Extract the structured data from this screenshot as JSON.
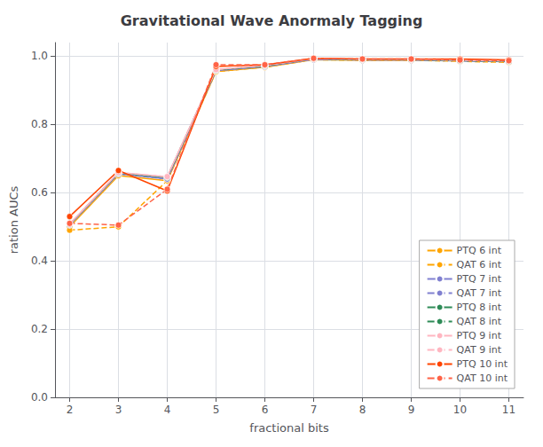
{
  "chart_data": {
    "type": "line",
    "title": "Gravitational Wave Anormaly Tagging",
    "xlabel": "fractional bits",
    "ylabel": "ration AUCs",
    "x": [
      2,
      3,
      4,
      5,
      6,
      7,
      8,
      9,
      10,
      11
    ],
    "series": [
      {
        "name": "PTQ 6 int",
        "color": "#FFA500",
        "line_style": "solid",
        "values": [
          0.5,
          0.65,
          0.635,
          0.955,
          0.968,
          0.99,
          0.988,
          0.988,
          0.988,
          0.985
        ]
      },
      {
        "name": "QAT 6 int",
        "color": "#FFA500",
        "line_style": "dashed",
        "values": [
          0.49,
          0.5,
          0.635,
          0.955,
          0.968,
          0.99,
          0.988,
          0.988,
          0.985,
          0.982
        ]
      },
      {
        "name": "PTQ 7 int",
        "color": "#8080D0",
        "line_style": "solid",
        "values": [
          0.505,
          0.655,
          0.64,
          0.958,
          0.97,
          0.991,
          0.989,
          0.989,
          0.989,
          0.986
        ]
      },
      {
        "name": "QAT 7 int",
        "color": "#8080D0",
        "line_style": "dashed",
        "values": [
          0.505,
          0.655,
          0.64,
          0.958,
          0.97,
          0.991,
          0.989,
          0.989,
          0.986,
          0.984
        ]
      },
      {
        "name": "PTQ 8 int",
        "color": "#2E8B57",
        "line_style": "solid",
        "values": [
          0.507,
          0.658,
          0.645,
          0.96,
          0.972,
          0.993,
          0.99,
          0.99,
          0.99,
          0.987
        ]
      },
      {
        "name": "QAT 8 int",
        "color": "#2E8B57",
        "line_style": "dashed",
        "values": [
          0.507,
          0.658,
          0.645,
          0.96,
          0.972,
          0.993,
          0.99,
          0.99,
          0.987,
          0.985
        ]
      },
      {
        "name": "PTQ 9 int",
        "color": "#FFB6C1",
        "line_style": "solid",
        "values": [
          0.508,
          0.659,
          0.647,
          0.961,
          0.973,
          0.993,
          0.991,
          0.991,
          0.991,
          0.988
        ]
      },
      {
        "name": "QAT 9 int",
        "color": "#FFB6C1",
        "line_style": "dashed",
        "values": [
          0.508,
          0.659,
          0.647,
          0.961,
          0.973,
          0.993,
          0.991,
          0.991,
          0.988,
          0.986
        ]
      },
      {
        "name": "PTQ 10 int",
        "color": "#FF4500",
        "line_style": "solid",
        "values": [
          0.53,
          0.665,
          0.605,
          0.97,
          0.975,
          0.994,
          0.992,
          0.992,
          0.992,
          0.989
        ]
      },
      {
        "name": "QAT 10 int",
        "color": "#FF6347",
        "line_style": "dashed",
        "values": [
          0.51,
          0.505,
          0.61,
          0.975,
          0.975,
          0.994,
          0.992,
          0.992,
          0.989,
          0.987
        ]
      }
    ],
    "xlim": [
      1.7,
      11.3
    ],
    "xticks": [
      2,
      3,
      4,
      5,
      6,
      7,
      8,
      9,
      10,
      11
    ],
    "ylim": [
      0.0,
      1.04
    ],
    "yticks": [
      {
        "value": 0,
        "label": "0.0"
      },
      0.2,
      0.4,
      0.6,
      0.8,
      {
        "value": 1,
        "label": "1.0"
      }
    ],
    "grid": true,
    "legend": "lower right",
    "marker": "circle"
  }
}
